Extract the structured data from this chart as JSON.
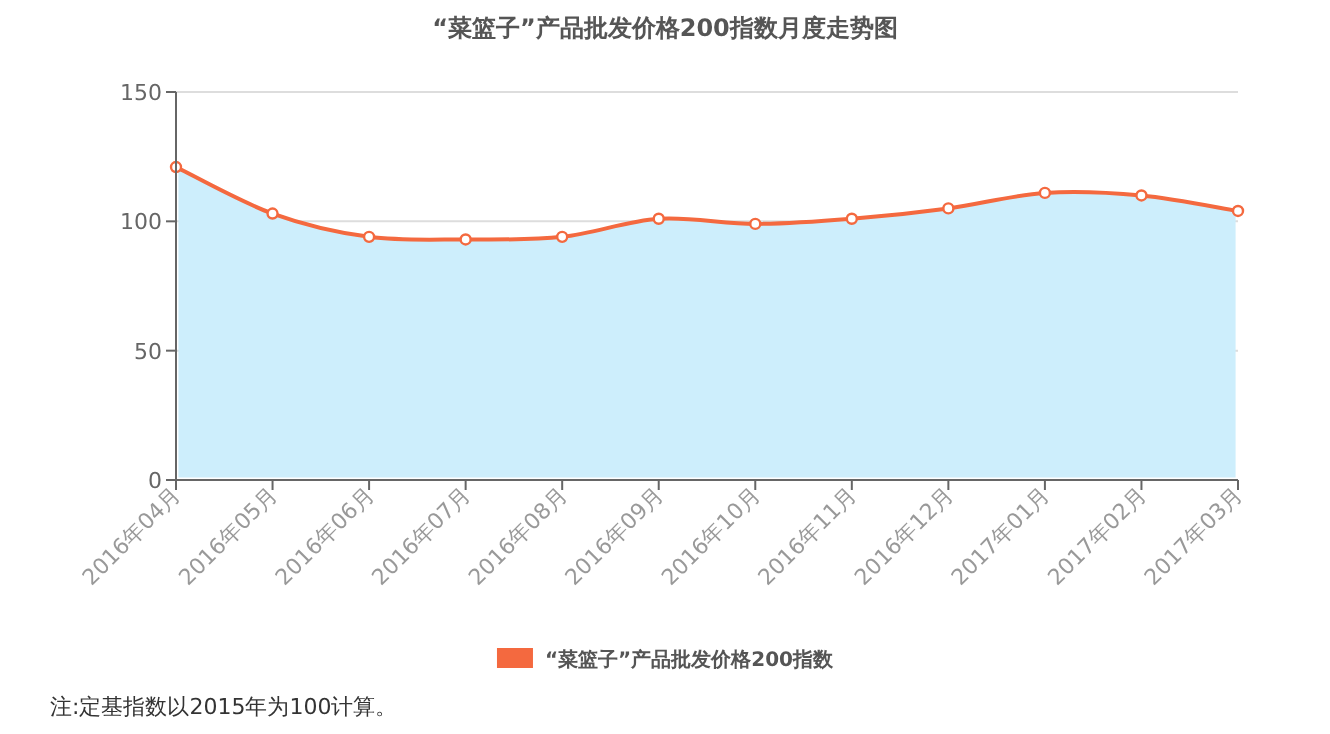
{
  "chart_data": {
    "type": "area",
    "title": "“菜篮子”产品批发价格200指数月度走势图",
    "categories": [
      "2016年04月",
      "2016年05月",
      "2016年06月",
      "2016年07月",
      "2016年08月",
      "2016年09月",
      "2016年10月",
      "2016年11月",
      "2016年12月",
      "2017年01月",
      "2017年02月",
      "2017年03月"
    ],
    "series": [
      {
        "name": "“菜篮子”产品批发价格200指数",
        "color": "#f4693f",
        "values": [
          121,
          103,
          94,
          93,
          94,
          101,
          99,
          101,
          105,
          111,
          110,
          104
        ]
      }
    ],
    "ylim": [
      0,
      150
    ],
    "yticks": [
      0,
      50,
      100,
      150
    ],
    "grid": "y",
    "legend": "bottom",
    "marker": "circle",
    "line_style": "solid",
    "annotations": [
      "注:定基指数以2015年为100计算。"
    ]
  }
}
